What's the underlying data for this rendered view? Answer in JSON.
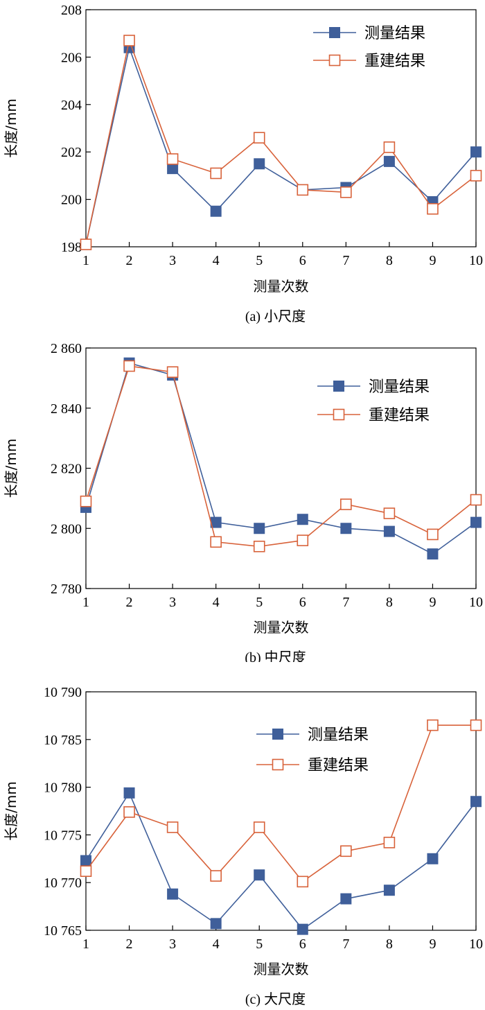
{
  "colors": {
    "measured": "#3f5f9a",
    "reconstructed": "#d8623a",
    "axis": "#000000"
  },
  "chart_data": [
    {
      "type": "line",
      "caption": "(a) 小尺度",
      "xlabel": "测量次数",
      "ylabel": "长度/mm",
      "x": [
        1,
        2,
        3,
        4,
        5,
        6,
        7,
        8,
        9,
        10
      ],
      "xlim": [
        1,
        10
      ],
      "ylim": [
        198,
        208
      ],
      "yticks": [
        198,
        200,
        202,
        204,
        206,
        208
      ],
      "ytick_labels": [
        "198",
        "200",
        "202",
        "204",
        "206",
        "208"
      ],
      "legend_position": "top-right",
      "series": [
        {
          "name": "测量结果",
          "marker": "filled-square",
          "values": [
            198.1,
            206.4,
            201.3,
            199.5,
            201.5,
            200.4,
            200.5,
            201.6,
            199.9,
            202.0
          ]
        },
        {
          "name": "重建结果",
          "marker": "hollow-square",
          "values": [
            198.1,
            206.7,
            201.7,
            201.1,
            202.6,
            200.4,
            200.3,
            202.2,
            199.6,
            201.0
          ]
        }
      ]
    },
    {
      "type": "line",
      "caption": "(b) 中尺度",
      "xlabel": "测量次数",
      "ylabel": "长度/mm",
      "x": [
        1,
        2,
        3,
        4,
        5,
        6,
        7,
        8,
        9,
        10
      ],
      "xlim": [
        1,
        10
      ],
      "ylim": [
        2780,
        2860
      ],
      "yticks": [
        2780,
        2800,
        2820,
        2840,
        2860
      ],
      "ytick_labels": [
        "2 780",
        "2 800",
        "2 820",
        "2 840",
        "2 860"
      ],
      "legend_position": "top-right",
      "series": [
        {
          "name": "测量结果",
          "marker": "filled-square",
          "values": [
            2807,
            2855,
            2851,
            2802,
            2800,
            2803,
            2800,
            2799,
            2791.5,
            2802
          ]
        },
        {
          "name": "重建结果",
          "marker": "hollow-square",
          "values": [
            2809,
            2854,
            2852,
            2795.5,
            2794,
            2796,
            2808,
            2805,
            2798,
            2809.5
          ]
        }
      ]
    },
    {
      "type": "line",
      "caption": "(c) 大尺度",
      "xlabel": "测量次数",
      "ylabel": "长度/mm",
      "x": [
        1,
        2,
        3,
        4,
        5,
        6,
        7,
        8,
        9,
        10
      ],
      "xlim": [
        1,
        10
      ],
      "ylim": [
        10765,
        10790
      ],
      "yticks": [
        10765,
        10770,
        10775,
        10780,
        10785,
        10790
      ],
      "ytick_labels": [
        "10 765",
        "10 770",
        "10 775",
        "10 780",
        "10 785",
        "10 790"
      ],
      "legend_position": "top-right",
      "series": [
        {
          "name": "测量结果",
          "marker": "filled-square",
          "values": [
            10772.3,
            10779.4,
            10768.8,
            10765.7,
            10770.8,
            10765.1,
            10768.3,
            10769.2,
            10772.5,
            10778.5
          ]
        },
        {
          "name": "重建结果",
          "marker": "hollow-square",
          "values": [
            10771.2,
            10777.4,
            10775.8,
            10770.7,
            10775.8,
            10770.1,
            10773.3,
            10774.2,
            10786.5,
            10786.5
          ]
        }
      ]
    }
  ]
}
